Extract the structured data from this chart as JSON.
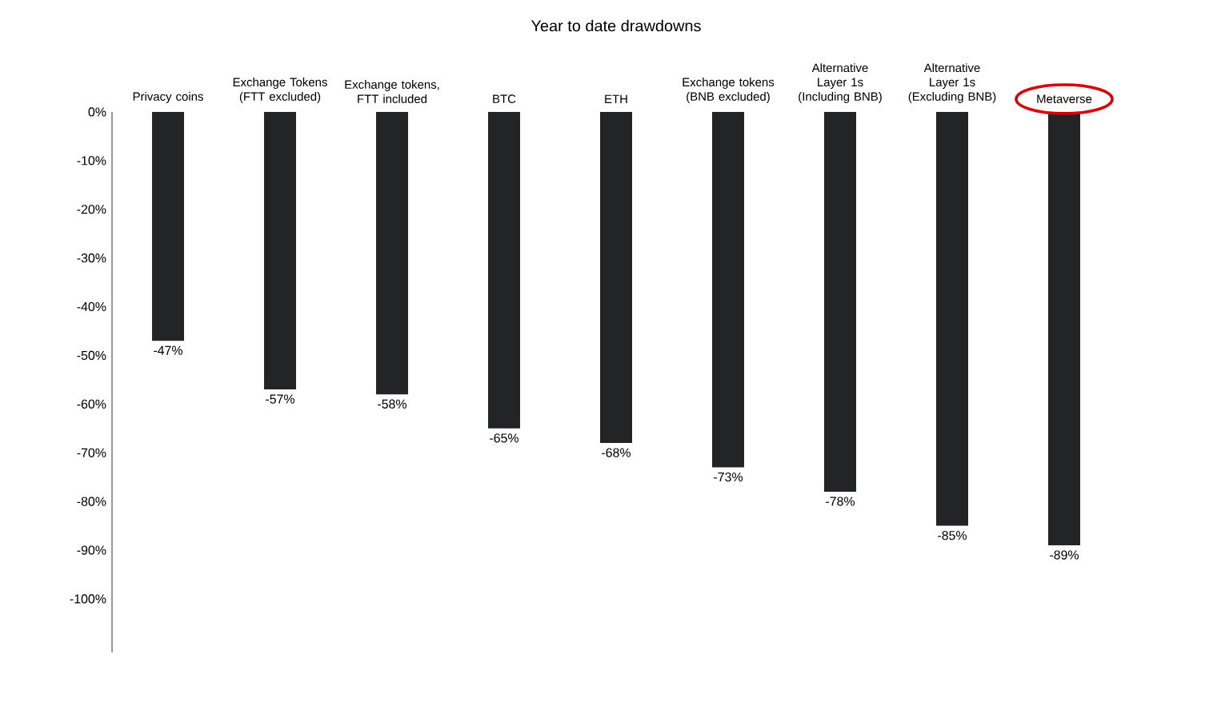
{
  "chart_data": {
    "type": "bar",
    "title": "Year to date drawdowns",
    "categories": [
      "Privacy coins",
      "Exchange Tokens (FTT excluded)",
      "Exchange tokens, FTT included",
      "BTC",
      "ETH",
      "Exchange tokens (BNB excluded)",
      "Alternative Layer 1s (Including BNB)",
      "Alternative Layer 1s (Excluding BNB)",
      "Metaverse"
    ],
    "values": [
      -47,
      -57,
      -58,
      -65,
      -68,
      -73,
      -78,
      -85,
      -89
    ],
    "value_labels": [
      "-47%",
      "-57%",
      "-58%",
      "-65%",
      "-68%",
      "-73%",
      "-78%",
      "-85%",
      "-89%"
    ],
    "color": "#222426",
    "ylim": [
      -111,
      0
    ],
    "yticks": [
      {
        "value": 0,
        "label": "0%"
      },
      {
        "value": -10,
        "label": "-10%"
      },
      {
        "value": -20,
        "label": "-20%"
      },
      {
        "value": -30,
        "label": "-30%"
      },
      {
        "value": -40,
        "label": "-40%"
      },
      {
        "value": -50,
        "label": "-50%"
      },
      {
        "value": -60,
        "label": "-60%"
      },
      {
        "value": -70,
        "label": "-70%"
      },
      {
        "value": -80,
        "label": "-80%"
      },
      {
        "value": -90,
        "label": "-90%"
      },
      {
        "value": -100,
        "label": "-100%"
      }
    ],
    "grid": false
  }
}
